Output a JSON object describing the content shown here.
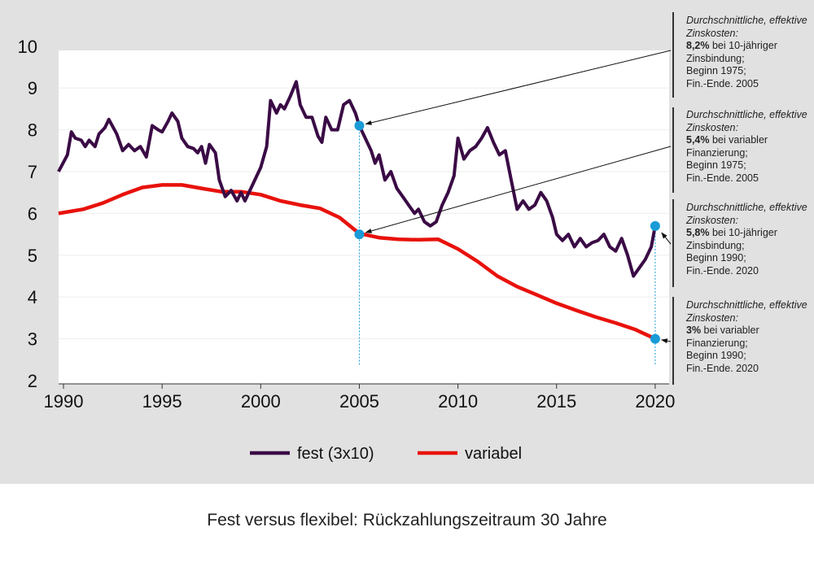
{
  "chart_data": {
    "type": "line",
    "title": "",
    "xlabel": "",
    "ylabel": "",
    "xlim": [
      1989.75,
      2020.7
    ],
    "ylim": [
      2,
      10
    ],
    "x_ticks": [
      "1990",
      "1995",
      "2000",
      "2005",
      "2010",
      "2015",
      "2020"
    ],
    "y_ticks": [
      "2",
      "3",
      "4",
      "5",
      "6",
      "7",
      "8",
      "9",
      "10"
    ],
    "grid": true,
    "legend_position": "bottom",
    "series": [
      {
        "name": "fest (3x10)",
        "color": "#3a0b45",
        "x": [
          1989.75,
          1990.2,
          1990.4,
          1990.6,
          1990.9,
          1991.1,
          1991.3,
          1991.6,
          1991.8,
          1992.1,
          1992.3,
          1992.7,
          1993.0,
          1993.3,
          1993.6,
          1993.9,
          1994.2,
          1994.5,
          1994.8,
          1995.0,
          1995.3,
          1995.5,
          1995.8,
          1996.0,
          1996.3,
          1996.6,
          1996.8,
          1997.0,
          1997.2,
          1997.4,
          1997.7,
          1997.9,
          1998.2,
          1998.5,
          1998.8,
          1999.0,
          1999.2,
          1999.5,
          1999.8,
          2000.0,
          2000.3,
          2000.5,
          2000.8,
          2001.0,
          2001.2,
          2001.5,
          2001.8,
          2002.0,
          2002.3,
          2002.6,
          2002.9,
          2003.1,
          2003.3,
          2003.6,
          2003.9,
          2004.2,
          2004.5,
          2004.8,
          2005.0,
          2005.3,
          2005.6,
          2005.8,
          2006.0,
          2006.3,
          2006.6,
          2006.9,
          2007.2,
          2007.5,
          2007.8,
          2008.0,
          2008.3,
          2008.6,
          2008.9,
          2009.2,
          2009.5,
          2009.8,
          2010.0,
          2010.3,
          2010.6,
          2010.9,
          2011.2,
          2011.5,
          2011.8,
          2012.1,
          2012.4,
          2012.7,
          2013.0,
          2013.3,
          2013.6,
          2013.9,
          2014.2,
          2014.5,
          2014.8,
          2015.0,
          2015.3,
          2015.6,
          2015.9,
          2016.2,
          2016.5,
          2016.8,
          2017.1,
          2017.4,
          2017.7,
          2018.0,
          2018.3,
          2018.6,
          2018.9,
          2019.2,
          2019.5,
          2019.8,
          2020.0
        ],
        "values": [
          7.0,
          7.4,
          7.95,
          7.8,
          7.75,
          7.6,
          7.75,
          7.6,
          7.9,
          8.05,
          8.25,
          7.9,
          7.5,
          7.65,
          7.5,
          7.6,
          7.35,
          8.1,
          8.0,
          7.95,
          8.2,
          8.4,
          8.2,
          7.8,
          7.6,
          7.55,
          7.45,
          7.6,
          7.2,
          7.65,
          7.45,
          6.8,
          6.4,
          6.55,
          6.3,
          6.5,
          6.3,
          6.6,
          6.9,
          7.1,
          7.6,
          8.7,
          8.4,
          8.6,
          8.5,
          8.8,
          9.15,
          8.6,
          8.3,
          8.3,
          7.85,
          7.7,
          8.3,
          8.0,
          8.0,
          8.6,
          8.7,
          8.4,
          8.1,
          7.8,
          7.5,
          7.2,
          7.4,
          6.8,
          7.0,
          6.6,
          6.4,
          6.2,
          6.0,
          6.1,
          5.8,
          5.7,
          5.8,
          6.2,
          6.5,
          6.9,
          7.8,
          7.3,
          7.5,
          7.6,
          7.8,
          8.05,
          7.7,
          7.4,
          7.5,
          6.8,
          6.1,
          6.3,
          6.1,
          6.2,
          6.5,
          6.3,
          5.9,
          5.5,
          5.35,
          5.5,
          5.2,
          5.4,
          5.2,
          5.3,
          5.35,
          5.5,
          5.2,
          5.1,
          5.4,
          5.0,
          4.5,
          4.7,
          4.9,
          5.2,
          5.7
        ]
      },
      {
        "name": "variabel",
        "color": "#e8120c",
        "x": [
          1989.75,
          1991,
          1992,
          1993,
          1994,
          1995,
          1996,
          1997,
          1998,
          1999,
          2000,
          2001,
          2002,
          2003,
          2004,
          2005,
          2006,
          2007,
          2008,
          2009,
          2010,
          2011,
          2012,
          2013,
          2014,
          2015,
          2016,
          2017,
          2018,
          2019,
          2020
        ],
        "values": [
          6.0,
          6.1,
          6.25,
          6.45,
          6.62,
          6.68,
          6.68,
          6.6,
          6.52,
          6.52,
          6.45,
          6.3,
          6.2,
          6.12,
          5.9,
          5.52,
          5.42,
          5.38,
          5.37,
          5.38,
          5.15,
          4.85,
          4.5,
          4.25,
          4.05,
          3.85,
          3.68,
          3.52,
          3.38,
          3.22,
          3.0
        ]
      }
    ],
    "highlight_points": [
      {
        "x": 2005,
        "y": 8.1,
        "series": "fest (3x10)"
      },
      {
        "x": 2005,
        "y": 5.5,
        "series": "variabel"
      },
      {
        "x": 2020,
        "y": 5.7,
        "series": "fest (3x10)"
      },
      {
        "x": 2020,
        "y": 3.0,
        "series": "variabel"
      }
    ],
    "point_color": "#1a9bd7",
    "annotations": [
      {
        "head": "Durchschnittliche, effektive Zinskosten:",
        "bold": "8,2%",
        "rest": " bei 10-jähriger",
        "l3": "Zinsbindung;",
        "l4": "Beginn 1975;",
        "l5": "Fin.-Ende. 2005"
      },
      {
        "head": "Durchschnittliche, effektive Zinskosten:",
        "bold": "5,4%",
        "rest": " bei variabler",
        "l3": "Finanzierung;",
        "l4": "Beginn 1975;",
        "l5": "Fin.-Ende. 2005"
      },
      {
        "head": "Durchschnittliche, effektive Zinskosten:",
        "bold": "5,8%",
        "rest": " bei 10-jähriger",
        "l3": "Zinsbindung;",
        "l4": "Beginn 1990;",
        "l5": "Fin.-Ende. 2020"
      },
      {
        "head": "Durchschnittliche, effektive Zinskosten:",
        "bold": "3%",
        "rest": " bei variabler",
        "l3": "Finanzierung;",
        "l4": "Beginn 1990;",
        "l5": "Fin.-Ende. 2020"
      }
    ]
  },
  "caption": "Fest versus flexibel: Rückzahlungszeitraum 30 Jahre"
}
